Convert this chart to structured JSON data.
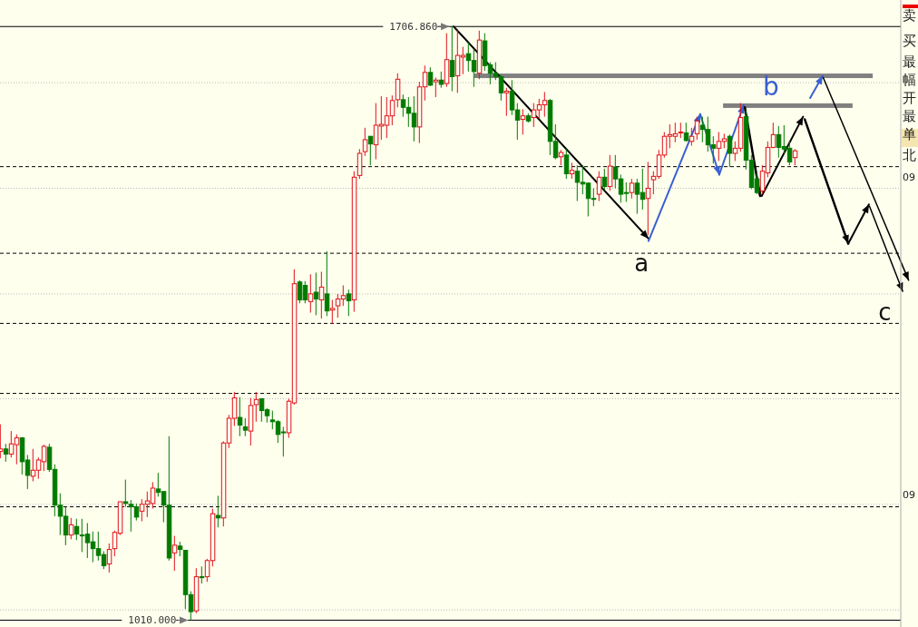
{
  "chart_data": {
    "type": "candlestick",
    "ylim": [
      1002,
      1738
    ],
    "categories": [
      null,
      null,
      null,
      null,
      null,
      null,
      null,
      null,
      null,
      null,
      null,
      null,
      null,
      null,
      null,
      null,
      null,
      null,
      null,
      null,
      null,
      null,
      null,
      null,
      null,
      null,
      null,
      null,
      null,
      null,
      null,
      null,
      null,
      null,
      null,
      null,
      null,
      null,
      null,
      null,
      null,
      null,
      null,
      null,
      null,
      null,
      null,
      null,
      null,
      null,
      null,
      null,
      null,
      null,
      null,
      null,
      null,
      null,
      null,
      null,
      null,
      null,
      null,
      null,
      null,
      null,
      null,
      null,
      null,
      null,
      null,
      null,
      null,
      null,
      null,
      null,
      null,
      null,
      null,
      null,
      null,
      null,
      null,
      null,
      null,
      null,
      null,
      null,
      null,
      null,
      null,
      null,
      null,
      null,
      null,
      null,
      null,
      null,
      null,
      null,
      null,
      null,
      null,
      null,
      null,
      null,
      null,
      null,
      null,
      null,
      null,
      null,
      null,
      null,
      null,
      null,
      null,
      null,
      null,
      null,
      null,
      null,
      null,
      null,
      null,
      null,
      null,
      null,
      null,
      null,
      null,
      null,
      null,
      null,
      null,
      null,
      null,
      null,
      null,
      null,
      null,
      null,
      null,
      null,
      null,
      null,
      null,
      null,
      null,
      null,
      null,
      null,
      null,
      null,
      null,
      null,
      null,
      null,
      null,
      null,
      null,
      null,
      null,
      null,
      null,
      null,
      null,
      null
    ],
    "ohlc": [
      [
        1208,
        1240,
        1200,
        1211
      ],
      [
        1211,
        1217,
        1196,
        1205
      ],
      [
        1205,
        1232,
        1201,
        1217
      ],
      [
        1216,
        1228,
        1193,
        1224
      ],
      [
        1224,
        1225,
        1181,
        1196
      ],
      [
        1198,
        1204,
        1164,
        1180
      ],
      [
        1179,
        1211,
        1173,
        1186
      ],
      [
        1186,
        1201,
        1176,
        1198
      ],
      [
        1196,
        1216,
        1185,
        1214
      ],
      [
        1213,
        1217,
        1184,
        1187
      ],
      [
        1187,
        1193,
        1132,
        1145
      ],
      [
        1145,
        1159,
        1110,
        1132
      ],
      [
        1132,
        1143,
        1098,
        1110
      ],
      [
        1110,
        1130,
        1105,
        1122
      ],
      [
        1120,
        1129,
        1104,
        1111
      ],
      [
        1110,
        1129,
        1090,
        1110
      ],
      [
        1111,
        1124,
        1083,
        1101
      ],
      [
        1102,
        1114,
        1078,
        1094
      ],
      [
        1094,
        1114,
        1080,
        1086
      ],
      [
        1087,
        1091,
        1070,
        1074
      ],
      [
        1076,
        1100,
        1066,
        1093
      ],
      [
        1094,
        1115,
        1085,
        1113
      ],
      [
        1112,
        1149,
        1110,
        1149
      ],
      [
        1149,
        1175,
        1143,
        1147
      ],
      [
        1146,
        1151,
        1114,
        1143
      ],
      [
        1143,
        1147,
        1127,
        1131
      ],
      [
        1138,
        1152,
        1126,
        1146
      ],
      [
        1146,
        1161,
        1131,
        1150
      ],
      [
        1147,
        1172,
        1141,
        1165
      ],
      [
        1164,
        1183,
        1155,
        1160
      ],
      [
        1161,
        1161,
        1125,
        1145
      ],
      [
        1145,
        1226,
        1080,
        1083
      ],
      [
        1089,
        1109,
        1068,
        1098
      ],
      [
        1097,
        1102,
        1085,
        1093
      ],
      [
        1092,
        1092,
        1023,
        1040
      ],
      [
        1040,
        1044,
        1010,
        1020
      ],
      [
        1021,
        1071,
        1018,
        1061
      ],
      [
        1061,
        1073,
        1053,
        1060
      ],
      [
        1061,
        1082,
        1055,
        1080
      ],
      [
        1080,
        1141,
        1073,
        1135
      ],
      [
        1133,
        1156,
        1119,
        1130
      ],
      [
        1130,
        1220,
        1120,
        1218
      ],
      [
        1218,
        1251,
        1212,
        1247
      ],
      [
        1247,
        1278,
        1238,
        1271
      ],
      [
        1248,
        1272,
        1226,
        1239
      ],
      [
        1237,
        1247,
        1226,
        1233
      ],
      [
        1232,
        1271,
        1215,
        1262
      ],
      [
        1263,
        1278,
        1243,
        1269
      ],
      [
        1270,
        1270,
        1243,
        1256
      ],
      [
        1257,
        1259,
        1242,
        1250
      ],
      [
        1245,
        1256,
        1234,
        1243
      ],
      [
        1243,
        1245,
        1218,
        1228
      ],
      [
        1231,
        1237,
        1202,
        1231
      ],
      [
        1230,
        1270,
        1224,
        1267
      ],
      [
        1265,
        1422,
        1263,
        1405
      ],
      [
        1407,
        1409,
        1382,
        1386
      ],
      [
        1403,
        1408,
        1382,
        1386
      ],
      [
        1384,
        1416,
        1371,
        1393
      ],
      [
        1395,
        1418,
        1368,
        1387
      ],
      [
        1386,
        1419,
        1364,
        1401
      ],
      [
        1393,
        1443,
        1367,
        1373
      ],
      [
        1374,
        1386,
        1358,
        1376
      ],
      [
        1379,
        1393,
        1365,
        1387
      ],
      [
        1387,
        1403,
        1379,
        1391
      ],
      [
        1393,
        1398,
        1367,
        1385
      ],
      [
        1386,
        1537,
        1372,
        1530
      ],
      [
        1532,
        1563,
        1528,
        1558
      ],
      [
        1560,
        1588,
        1555,
        1574
      ],
      [
        1578,
        1578,
        1544,
        1569
      ],
      [
        1568,
        1617,
        1551,
        1591
      ],
      [
        1590,
        1625,
        1574,
        1592
      ],
      [
        1591,
        1624,
        1576,
        1602
      ],
      [
        1602,
        1626,
        1591,
        1620
      ],
      [
        1621,
        1652,
        1612,
        1645
      ],
      [
        1621,
        1627,
        1601,
        1612
      ],
      [
        1612,
        1624,
        1589,
        1605
      ],
      [
        1605,
        1625,
        1572,
        1589
      ],
      [
        1589,
        1642,
        1570,
        1636
      ],
      [
        1636,
        1661,
        1620,
        1653
      ],
      [
        1653,
        1659,
        1637,
        1638
      ],
      [
        1642,
        1647,
        1624,
        1644
      ],
      [
        1644,
        1654,
        1635,
        1639
      ],
      [
        1640,
        1699,
        1636,
        1668
      ],
      [
        1667,
        1706.86,
        1631,
        1648
      ],
      [
        1649,
        1704,
        1629,
        1673
      ],
      [
        1671,
        1683,
        1651,
        1673
      ],
      [
        1675,
        1688,
        1654,
        1667
      ],
      [
        1667,
        1681,
        1636,
        1654
      ],
      [
        1652,
        1702,
        1645,
        1691
      ],
      [
        1690,
        1699,
        1655,
        1661
      ],
      [
        1662,
        1665,
        1639,
        1652
      ],
      [
        1652,
        1665,
        1644,
        1648
      ],
      [
        1648,
        1650,
        1620,
        1629
      ],
      [
        1629,
        1635,
        1602,
        1631
      ],
      [
        1631,
        1644,
        1603,
        1609
      ],
      [
        1609,
        1617,
        1574,
        1597
      ],
      [
        1598,
        1610,
        1580,
        1602
      ],
      [
        1602,
        1605,
        1594,
        1596
      ],
      [
        1600,
        1617,
        1589,
        1609
      ],
      [
        1609,
        1622,
        1599,
        1615
      ],
      [
        1615,
        1630,
        1601,
        1620
      ],
      [
        1620,
        1622,
        1556,
        1572
      ],
      [
        1572,
        1592,
        1551,
        1553
      ],
      [
        1554,
        1562,
        1544,
        1559
      ],
      [
        1556,
        1563,
        1528,
        1534
      ],
      [
        1534,
        1547,
        1528,
        1538
      ],
      [
        1537,
        1544,
        1502,
        1524
      ],
      [
        1524,
        1544,
        1510,
        1522
      ],
      [
        1523,
        1524,
        1484,
        1505
      ],
      [
        1505,
        1517,
        1496,
        1504
      ],
      [
        1510,
        1537,
        1502,
        1530
      ],
      [
        1530,
        1540,
        1515,
        1519
      ],
      [
        1519,
        1556,
        1514,
        1543
      ],
      [
        1542,
        1556,
        1517,
        1528
      ],
      [
        1528,
        1533,
        1500,
        1510
      ],
      [
        1512,
        1524,
        1501,
        1511
      ],
      [
        1512,
        1528,
        1505,
        1523
      ],
      [
        1523,
        1528,
        1487,
        1510
      ],
      [
        1512,
        1540,
        1492,
        1504
      ],
      [
        1505,
        1548,
        1462,
        1517
      ],
      [
        1527,
        1537,
        1510,
        1531
      ],
      [
        1531,
        1562,
        1528,
        1556
      ],
      [
        1556,
        1583,
        1553,
        1578
      ],
      [
        1578,
        1592,
        1564,
        1580
      ],
      [
        1578,
        1594,
        1571,
        1581
      ],
      [
        1582,
        1594,
        1576,
        1583
      ],
      [
        1582,
        1594,
        1572,
        1573
      ],
      [
        1572,
        1588,
        1567,
        1578
      ],
      [
        1581,
        1601,
        1574,
        1596
      ],
      [
        1591,
        1601,
        1571,
        1586
      ],
      [
        1586,
        1601,
        1560,
        1568
      ],
      [
        1568,
        1578,
        1546,
        1564
      ],
      [
        1564,
        1583,
        1549,
        1572
      ],
      [
        1572,
        1581,
        1564,
        1575
      ],
      [
        1578,
        1580,
        1542,
        1558
      ],
      [
        1558,
        1572,
        1549,
        1564
      ],
      [
        1564,
        1617,
        1560,
        1600
      ],
      [
        1601,
        1608,
        1539,
        1550
      ],
      [
        1550,
        1556,
        1516,
        1518
      ],
      [
        1528,
        1535,
        1510,
        1512
      ],
      [
        1514,
        1544,
        1510,
        1537
      ],
      [
        1535,
        1572,
        1530,
        1565
      ],
      [
        1565,
        1594,
        1564,
        1580
      ],
      [
        1580,
        1590,
        1553,
        1565
      ],
      [
        1566,
        1591,
        1558,
        1563
      ],
      [
        1564,
        1572,
        1544,
        1548
      ],
      [
        1553,
        1563,
        1544,
        1561
      ],
      null,
      null,
      null,
      null,
      null,
      null,
      null,
      null,
      null,
      null,
      null,
      null,
      null,
      null,
      null,
      null,
      null,
      null,
      null,
      null,
      null
    ],
    "ref_lines": [
      {
        "axis": "y",
        "value": 1706.86,
        "color": "#000000",
        "line_style": "solid"
      },
      {
        "axis": "y",
        "value": 1010,
        "color": "#000000",
        "line_style": "solid"
      },
      {
        "axis": "y",
        "value": 1542.4,
        "color": "#000000",
        "line_style": "dashed"
      },
      {
        "axis": "y",
        "value": 1440.7,
        "color": "#000000",
        "line_style": "dashed"
      },
      {
        "axis": "y",
        "value": 1358.4,
        "color": "#000000",
        "line_style": "dashed"
      },
      {
        "axis": "y",
        "value": 1276.2,
        "color": "#000000",
        "line_style": "dashed"
      },
      {
        "axis": "y",
        "value": 1143.1,
        "color": "#000000",
        "line_style": "dashed"
      },
      {
        "axis": "y",
        "value": 1641,
        "color": "#b8b8b8",
        "line_style": "dotted"
      },
      {
        "axis": "y",
        "value": 1517,
        "color": "#b8b8b8",
        "line_style": "dotted"
      },
      {
        "axis": "y",
        "value": 1393,
        "color": "#b8b8b8",
        "line_style": "dotted"
      },
      {
        "axis": "y",
        "value": 1270,
        "color": "#b8b8b8",
        "line_style": "dotted"
      },
      {
        "axis": "y",
        "value": 1146,
        "color": "#b8b8b8",
        "line_style": "dotted"
      },
      {
        "axis": "y",
        "value": 1022,
        "color": "#b8b8b8",
        "line_style": "dotted"
      }
    ],
    "annotations": [
      "a",
      "b",
      "c",
      {
        "text": "1706.860",
        "y": 1706.86
      },
      {
        "text": "1010.000",
        "y": 1010
      },
      "卖",
      "买",
      "最",
      "幅",
      "开",
      "最",
      "单",
      "北",
      "09",
      "09"
    ]
  }
}
